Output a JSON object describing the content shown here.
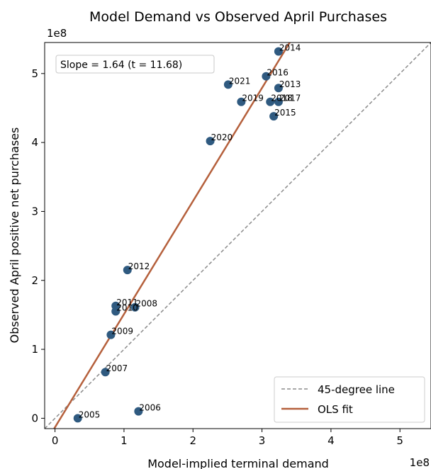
{
  "chart_data": {
    "type": "scatter",
    "title": "Model Demand vs Observed April Purchases",
    "xlabel": "Model-implied terminal demand",
    "ylabel": "Observed April positive net purchases",
    "x_offset_label": "1e8",
    "y_offset_label": "1e8",
    "xlim": [
      -0.15,
      5.45
    ],
    "ylim": [
      -0.15,
      5.45
    ],
    "xticks": [
      0,
      1,
      2,
      3,
      4,
      5
    ],
    "yticks": [
      0,
      1,
      2,
      3,
      4,
      5
    ],
    "grid": false,
    "legend_position": "bottom-right",
    "annotation": "Slope = 1.64 (t = 11.68)",
    "points": [
      {
        "label": "2005",
        "x": 0.33,
        "y": 0.0
      },
      {
        "label": "2006",
        "x": 1.21,
        "y": 0.1
      },
      {
        "label": "2007",
        "x": 0.73,
        "y": 0.67
      },
      {
        "label": "2008",
        "x": 1.16,
        "y": 1.61
      },
      {
        "label": "2009",
        "x": 0.81,
        "y": 1.21
      },
      {
        "label": "2010",
        "x": 0.88,
        "y": 1.55
      },
      {
        "label": "2011",
        "x": 0.88,
        "y": 1.63
      },
      {
        "label": "2012",
        "x": 1.05,
        "y": 2.15
      },
      {
        "label": "2013",
        "x": 3.24,
        "y": 4.79
      },
      {
        "label": "2014",
        "x": 3.24,
        "y": 5.32
      },
      {
        "label": "2015",
        "x": 3.17,
        "y": 4.38
      },
      {
        "label": "2016",
        "x": 3.06,
        "y": 4.96
      },
      {
        "label": "2017",
        "x": 3.24,
        "y": 4.59
      },
      {
        "label": "2018",
        "x": 3.12,
        "y": 4.59
      },
      {
        "label": "2019",
        "x": 2.7,
        "y": 4.59
      },
      {
        "label": "2020",
        "x": 2.25,
        "y": 4.02
      },
      {
        "label": "2021",
        "x": 2.51,
        "y": 4.84
      }
    ],
    "series": [
      {
        "name": "45-degree line",
        "type": "line",
        "style": "dashed",
        "color": "#8c8c8c"
      },
      {
        "name": "OLS fit",
        "type": "line",
        "style": "solid",
        "color": "#b5603c",
        "slope": 1.64,
        "intercept": -0.13
      }
    ],
    "colors": {
      "points": "#2f5a80",
      "ols": "#b5603c",
      "diagonal": "#8c8c8c"
    }
  }
}
